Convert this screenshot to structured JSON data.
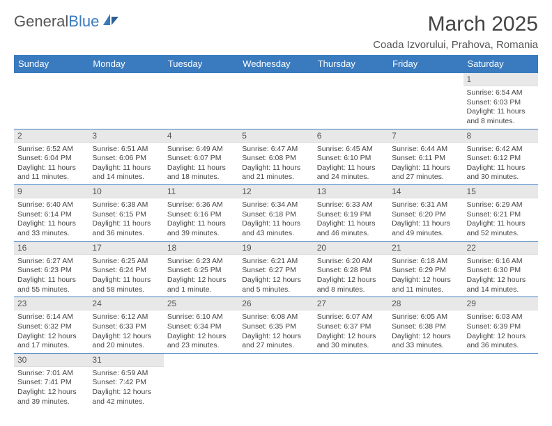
{
  "logo": {
    "text_a": "General",
    "text_b": "Blue"
  },
  "header": {
    "month_title": "March 2025",
    "location": "Coada Izvorului, Prahova, Romania"
  },
  "colors": {
    "header_bg": "#3a7bbf",
    "daynum_bg": "#e8e8e8",
    "border": "#3a7bbf"
  },
  "weekdays": [
    "Sunday",
    "Monday",
    "Tuesday",
    "Wednesday",
    "Thursday",
    "Friday",
    "Saturday"
  ],
  "weeks": [
    [
      null,
      null,
      null,
      null,
      null,
      null,
      {
        "n": "1",
        "sr": "Sunrise: 6:54 AM",
        "ss": "Sunset: 6:03 PM",
        "dl": "Daylight: 11 hours and 8 minutes."
      }
    ],
    [
      {
        "n": "2",
        "sr": "Sunrise: 6:52 AM",
        "ss": "Sunset: 6:04 PM",
        "dl": "Daylight: 11 hours and 11 minutes."
      },
      {
        "n": "3",
        "sr": "Sunrise: 6:51 AM",
        "ss": "Sunset: 6:06 PM",
        "dl": "Daylight: 11 hours and 14 minutes."
      },
      {
        "n": "4",
        "sr": "Sunrise: 6:49 AM",
        "ss": "Sunset: 6:07 PM",
        "dl": "Daylight: 11 hours and 18 minutes."
      },
      {
        "n": "5",
        "sr": "Sunrise: 6:47 AM",
        "ss": "Sunset: 6:08 PM",
        "dl": "Daylight: 11 hours and 21 minutes."
      },
      {
        "n": "6",
        "sr": "Sunrise: 6:45 AM",
        "ss": "Sunset: 6:10 PM",
        "dl": "Daylight: 11 hours and 24 minutes."
      },
      {
        "n": "7",
        "sr": "Sunrise: 6:44 AM",
        "ss": "Sunset: 6:11 PM",
        "dl": "Daylight: 11 hours and 27 minutes."
      },
      {
        "n": "8",
        "sr": "Sunrise: 6:42 AM",
        "ss": "Sunset: 6:12 PM",
        "dl": "Daylight: 11 hours and 30 minutes."
      }
    ],
    [
      {
        "n": "9",
        "sr": "Sunrise: 6:40 AM",
        "ss": "Sunset: 6:14 PM",
        "dl": "Daylight: 11 hours and 33 minutes."
      },
      {
        "n": "10",
        "sr": "Sunrise: 6:38 AM",
        "ss": "Sunset: 6:15 PM",
        "dl": "Daylight: 11 hours and 36 minutes."
      },
      {
        "n": "11",
        "sr": "Sunrise: 6:36 AM",
        "ss": "Sunset: 6:16 PM",
        "dl": "Daylight: 11 hours and 39 minutes."
      },
      {
        "n": "12",
        "sr": "Sunrise: 6:34 AM",
        "ss": "Sunset: 6:18 PM",
        "dl": "Daylight: 11 hours and 43 minutes."
      },
      {
        "n": "13",
        "sr": "Sunrise: 6:33 AM",
        "ss": "Sunset: 6:19 PM",
        "dl": "Daylight: 11 hours and 46 minutes."
      },
      {
        "n": "14",
        "sr": "Sunrise: 6:31 AM",
        "ss": "Sunset: 6:20 PM",
        "dl": "Daylight: 11 hours and 49 minutes."
      },
      {
        "n": "15",
        "sr": "Sunrise: 6:29 AM",
        "ss": "Sunset: 6:21 PM",
        "dl": "Daylight: 11 hours and 52 minutes."
      }
    ],
    [
      {
        "n": "16",
        "sr": "Sunrise: 6:27 AM",
        "ss": "Sunset: 6:23 PM",
        "dl": "Daylight: 11 hours and 55 minutes."
      },
      {
        "n": "17",
        "sr": "Sunrise: 6:25 AM",
        "ss": "Sunset: 6:24 PM",
        "dl": "Daylight: 11 hours and 58 minutes."
      },
      {
        "n": "18",
        "sr": "Sunrise: 6:23 AM",
        "ss": "Sunset: 6:25 PM",
        "dl": "Daylight: 12 hours and 1 minute."
      },
      {
        "n": "19",
        "sr": "Sunrise: 6:21 AM",
        "ss": "Sunset: 6:27 PM",
        "dl": "Daylight: 12 hours and 5 minutes."
      },
      {
        "n": "20",
        "sr": "Sunrise: 6:20 AM",
        "ss": "Sunset: 6:28 PM",
        "dl": "Daylight: 12 hours and 8 minutes."
      },
      {
        "n": "21",
        "sr": "Sunrise: 6:18 AM",
        "ss": "Sunset: 6:29 PM",
        "dl": "Daylight: 12 hours and 11 minutes."
      },
      {
        "n": "22",
        "sr": "Sunrise: 6:16 AM",
        "ss": "Sunset: 6:30 PM",
        "dl": "Daylight: 12 hours and 14 minutes."
      }
    ],
    [
      {
        "n": "23",
        "sr": "Sunrise: 6:14 AM",
        "ss": "Sunset: 6:32 PM",
        "dl": "Daylight: 12 hours and 17 minutes."
      },
      {
        "n": "24",
        "sr": "Sunrise: 6:12 AM",
        "ss": "Sunset: 6:33 PM",
        "dl": "Daylight: 12 hours and 20 minutes."
      },
      {
        "n": "25",
        "sr": "Sunrise: 6:10 AM",
        "ss": "Sunset: 6:34 PM",
        "dl": "Daylight: 12 hours and 23 minutes."
      },
      {
        "n": "26",
        "sr": "Sunrise: 6:08 AM",
        "ss": "Sunset: 6:35 PM",
        "dl": "Daylight: 12 hours and 27 minutes."
      },
      {
        "n": "27",
        "sr": "Sunrise: 6:07 AM",
        "ss": "Sunset: 6:37 PM",
        "dl": "Daylight: 12 hours and 30 minutes."
      },
      {
        "n": "28",
        "sr": "Sunrise: 6:05 AM",
        "ss": "Sunset: 6:38 PM",
        "dl": "Daylight: 12 hours and 33 minutes."
      },
      {
        "n": "29",
        "sr": "Sunrise: 6:03 AM",
        "ss": "Sunset: 6:39 PM",
        "dl": "Daylight: 12 hours and 36 minutes."
      }
    ],
    [
      {
        "n": "30",
        "sr": "Sunrise: 7:01 AM",
        "ss": "Sunset: 7:41 PM",
        "dl": "Daylight: 12 hours and 39 minutes."
      },
      {
        "n": "31",
        "sr": "Sunrise: 6:59 AM",
        "ss": "Sunset: 7:42 PM",
        "dl": "Daylight: 12 hours and 42 minutes."
      },
      null,
      null,
      null,
      null,
      null
    ]
  ]
}
